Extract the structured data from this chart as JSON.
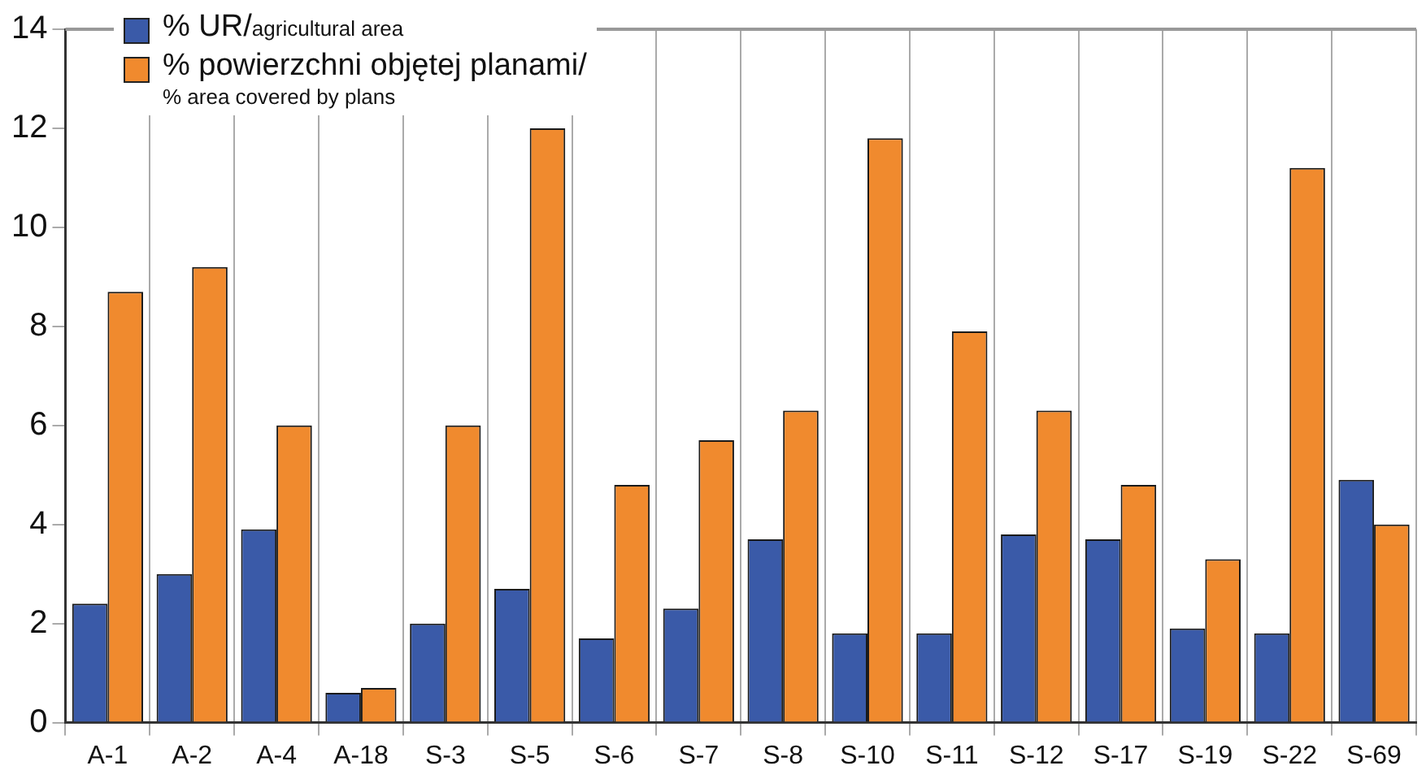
{
  "chart_data": {
    "type": "bar",
    "categories": [
      "A-1",
      "A-2",
      "A-4",
      "A-18",
      "S-3",
      "S-5",
      "S-6",
      "S-7",
      "S-8",
      "S-10",
      "S-11",
      "S-12",
      "S-17",
      "S-19",
      "S-22",
      "S-69"
    ],
    "series": [
      {
        "name": "% UR/agricultural area",
        "color": "#3a5aa8",
        "values": [
          2.4,
          3.0,
          3.9,
          0.6,
          2.0,
          2.7,
          1.7,
          2.3,
          3.7,
          1.8,
          1.8,
          3.8,
          3.7,
          1.9,
          1.8,
          4.9
        ]
      },
      {
        "name": "% powierzchni objętej planami/% area covered by plans",
        "color": "#f08a2e",
        "values": [
          8.7,
          9.2,
          6.0,
          0.7,
          6.0,
          12.0,
          4.8,
          5.7,
          6.3,
          11.8,
          7.9,
          6.3,
          4.8,
          3.3,
          11.2,
          4.0
        ]
      }
    ],
    "ylim": [
      0,
      14
    ],
    "yticks": [
      0,
      2,
      4,
      6,
      8,
      10,
      12,
      14
    ],
    "grid": "x",
    "legend": "top left"
  }
}
